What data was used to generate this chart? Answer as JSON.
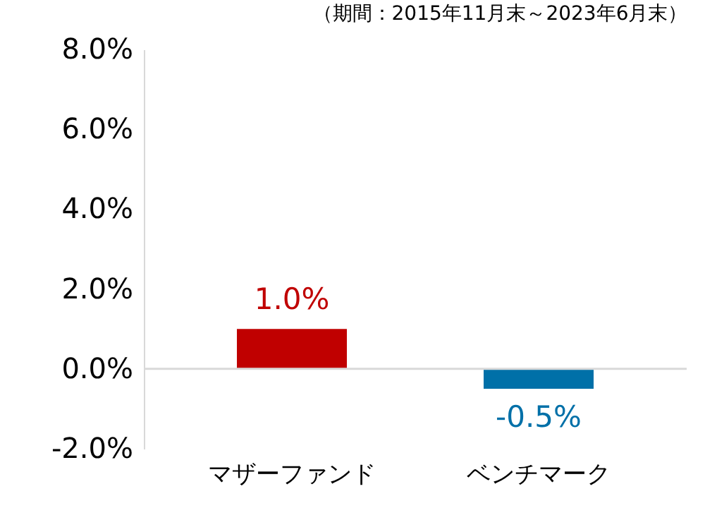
{
  "chart_data": {
    "type": "bar",
    "categories": [
      "マザーファンド",
      "ベンチマーク"
    ],
    "values": [
      1.0,
      -0.5
    ],
    "colors": [
      "#c00000",
      "#0070a8"
    ],
    "value_labels": [
      "1.0%",
      "-0.5%"
    ],
    "ylim": [
      -2,
      8
    ],
    "yticks": [
      {
        "value": -2,
        "label": "-2.0%"
      },
      {
        "value": 0,
        "label": "0.0%"
      },
      {
        "value": 2,
        "label": "2.0%"
      },
      {
        "value": 4,
        "label": "4.0%"
      },
      {
        "value": 6,
        "label": "6.0%"
      },
      {
        "value": 8,
        "label": "8.0%"
      }
    ],
    "ref_lines": [
      {
        "axis": "y",
        "value": 0,
        "color": "#d9d9d9"
      }
    ],
    "annotations": [
      "（期間：2015年11月末～2023年6月末）"
    ],
    "grid": false
  }
}
